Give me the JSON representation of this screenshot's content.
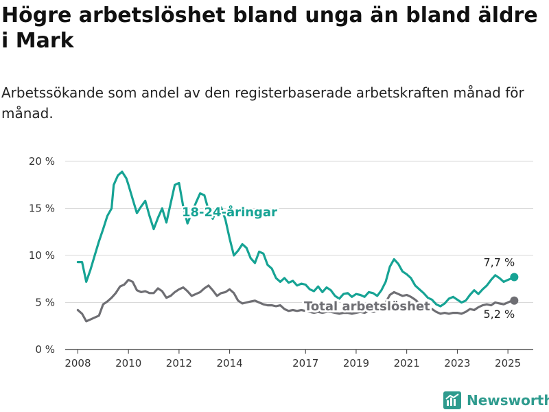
{
  "title": "Högre arbetslöshet bland unga än bland äldre i Mark",
  "subtitle": "Arbetssökande som andel av den registerbaserade arbetskraften månad för månad.",
  "brand": "Newsworthy",
  "colors": {
    "youth": "#16a394",
    "total": "#6e6e73",
    "grid": "#d9d9d9",
    "axis": "#333333",
    "brand": "#2f9b8e"
  },
  "chart_data": {
    "type": "line",
    "title": "Högre arbetslöshet bland unga än bland äldre i Mark",
    "subtitle": "Arbetssökande som andel av den registerbaserade arbetskraften månad för månad.",
    "xlabel": "",
    "ylabel": "",
    "x_ticks": [
      2008,
      2010,
      2012,
      2014,
      2017,
      2019,
      2021,
      2023,
      2025
    ],
    "xlim": [
      "2007-07",
      "2026-01"
    ],
    "y_ticks": [
      0,
      5,
      10,
      15,
      20
    ],
    "y_tick_labels": [
      "0 %",
      "5 %",
      "10 %",
      "15 %",
      "20 %"
    ],
    "ylim": [
      0,
      20
    ],
    "y_unit": "%",
    "grid": "horizontal",
    "legend": "none (direct labels)",
    "series": [
      {
        "name": "18-24-åringar",
        "key": "youth",
        "points": [
          [
            "2008-01",
            9.3
          ],
          [
            "2008-03",
            9.3
          ],
          [
            "2008-05",
            7.2
          ],
          [
            "2008-07",
            8.5
          ],
          [
            "2008-09",
            10.0
          ],
          [
            "2008-11",
            11.5
          ],
          [
            "2009-01",
            12.8
          ],
          [
            "2009-03",
            14.2
          ],
          [
            "2009-05",
            15.0
          ],
          [
            "2009-06",
            17.5
          ],
          [
            "2009-08",
            18.5
          ],
          [
            "2009-10",
            18.9
          ],
          [
            "2009-12",
            18.2
          ],
          [
            "2010-01",
            17.5
          ],
          [
            "2010-03",
            16.0
          ],
          [
            "2010-05",
            14.5
          ],
          [
            "2010-07",
            15.2
          ],
          [
            "2010-09",
            15.8
          ],
          [
            "2010-11",
            14.2
          ],
          [
            "2011-01",
            12.8
          ],
          [
            "2011-03",
            14.0
          ],
          [
            "2011-05",
            15.0
          ],
          [
            "2011-07",
            13.5
          ],
          [
            "2011-09",
            15.5
          ],
          [
            "2011-11",
            17.5
          ],
          [
            "2012-01",
            17.7
          ],
          [
            "2012-03",
            15.2
          ],
          [
            "2012-05",
            13.4
          ],
          [
            "2012-07",
            14.5
          ],
          [
            "2012-09",
            15.6
          ],
          [
            "2012-11",
            16.6
          ],
          [
            "2013-01",
            16.4
          ],
          [
            "2013-03",
            14.8
          ],
          [
            "2013-05",
            13.9
          ],
          [
            "2013-07",
            14.9
          ],
          [
            "2013-09",
            15.1
          ],
          [
            "2013-11",
            13.8
          ],
          [
            "2014-01",
            11.8
          ],
          [
            "2014-03",
            10.0
          ],
          [
            "2014-05",
            10.5
          ],
          [
            "2014-07",
            11.2
          ],
          [
            "2014-09",
            10.8
          ],
          [
            "2014-11",
            9.7
          ],
          [
            "2015-01",
            9.2
          ],
          [
            "2015-03",
            10.4
          ],
          [
            "2015-05",
            10.2
          ],
          [
            "2015-07",
            9.0
          ],
          [
            "2015-09",
            8.6
          ],
          [
            "2015-11",
            7.6
          ],
          [
            "2016-01",
            7.2
          ],
          [
            "2016-03",
            7.6
          ],
          [
            "2016-05",
            7.1
          ],
          [
            "2016-07",
            7.3
          ],
          [
            "2016-09",
            6.8
          ],
          [
            "2016-11",
            7.0
          ],
          [
            "2017-01",
            6.9
          ],
          [
            "2017-03",
            6.4
          ],
          [
            "2017-05",
            6.2
          ],
          [
            "2017-07",
            6.7
          ],
          [
            "2017-09",
            6.1
          ],
          [
            "2017-11",
            6.6
          ],
          [
            "2018-01",
            6.3
          ],
          [
            "2018-03",
            5.7
          ],
          [
            "2018-05",
            5.4
          ],
          [
            "2018-07",
            5.9
          ],
          [
            "2018-09",
            6.0
          ],
          [
            "2018-11",
            5.6
          ],
          [
            "2019-01",
            5.9
          ],
          [
            "2019-03",
            5.8
          ],
          [
            "2019-05",
            5.6
          ],
          [
            "2019-07",
            6.1
          ],
          [
            "2019-09",
            6.0
          ],
          [
            "2019-11",
            5.7
          ],
          [
            "2020-01",
            6.3
          ],
          [
            "2020-03",
            7.2
          ],
          [
            "2020-05",
            8.8
          ],
          [
            "2020-07",
            9.6
          ],
          [
            "2020-09",
            9.1
          ],
          [
            "2020-11",
            8.3
          ],
          [
            "2021-01",
            8.0
          ],
          [
            "2021-03",
            7.6
          ],
          [
            "2021-05",
            6.8
          ],
          [
            "2021-07",
            6.4
          ],
          [
            "2021-09",
            6.0
          ],
          [
            "2021-11",
            5.5
          ],
          [
            "2022-01",
            5.3
          ],
          [
            "2022-03",
            4.8
          ],
          [
            "2022-05",
            4.6
          ],
          [
            "2022-07",
            4.9
          ],
          [
            "2022-09",
            5.4
          ],
          [
            "2022-11",
            5.6
          ],
          [
            "2023-01",
            5.3
          ],
          [
            "2023-03",
            5.0
          ],
          [
            "2023-05",
            5.2
          ],
          [
            "2023-07",
            5.8
          ],
          [
            "2023-09",
            6.3
          ],
          [
            "2023-11",
            5.9
          ],
          [
            "2024-01",
            6.4
          ],
          [
            "2024-03",
            6.8
          ],
          [
            "2024-05",
            7.4
          ],
          [
            "2024-07",
            7.9
          ],
          [
            "2024-09",
            7.6
          ],
          [
            "2024-11",
            7.2
          ],
          [
            "2025-01",
            7.4
          ],
          [
            "2025-02",
            7.5
          ],
          [
            "2025-04",
            7.7
          ]
        ],
        "label": "18-24-åringar",
        "end_label": "7,7 %"
      },
      {
        "name": "Total arbetslöshet",
        "key": "total",
        "points": [
          [
            "2008-01",
            4.2
          ],
          [
            "2008-03",
            3.8
          ],
          [
            "2008-05",
            3.0
          ],
          [
            "2008-07",
            3.2
          ],
          [
            "2008-09",
            3.4
          ],
          [
            "2008-11",
            3.6
          ],
          [
            "2009-01",
            4.8
          ],
          [
            "2009-03",
            5.1
          ],
          [
            "2009-05",
            5.5
          ],
          [
            "2009-07",
            6.0
          ],
          [
            "2009-09",
            6.7
          ],
          [
            "2009-11",
            6.9
          ],
          [
            "2010-01",
            7.4
          ],
          [
            "2010-03",
            7.2
          ],
          [
            "2010-05",
            6.3
          ],
          [
            "2010-07",
            6.1
          ],
          [
            "2010-09",
            6.2
          ],
          [
            "2010-11",
            6.0
          ],
          [
            "2011-01",
            6.0
          ],
          [
            "2011-03",
            6.5
          ],
          [
            "2011-05",
            6.2
          ],
          [
            "2011-07",
            5.5
          ],
          [
            "2011-09",
            5.7
          ],
          [
            "2011-11",
            6.1
          ],
          [
            "2012-01",
            6.4
          ],
          [
            "2012-03",
            6.6
          ],
          [
            "2012-05",
            6.2
          ],
          [
            "2012-07",
            5.7
          ],
          [
            "2012-09",
            5.9
          ],
          [
            "2012-11",
            6.1
          ],
          [
            "2013-01",
            6.5
          ],
          [
            "2013-03",
            6.8
          ],
          [
            "2013-05",
            6.3
          ],
          [
            "2013-07",
            5.7
          ],
          [
            "2013-09",
            6.0
          ],
          [
            "2013-11",
            6.1
          ],
          [
            "2014-01",
            6.4
          ],
          [
            "2014-03",
            6.0
          ],
          [
            "2014-05",
            5.2
          ],
          [
            "2014-07",
            4.9
          ],
          [
            "2014-09",
            5.0
          ],
          [
            "2014-11",
            5.1
          ],
          [
            "2015-01",
            5.2
          ],
          [
            "2015-03",
            5.0
          ],
          [
            "2015-05",
            4.8
          ],
          [
            "2015-07",
            4.7
          ],
          [
            "2015-09",
            4.7
          ],
          [
            "2015-11",
            4.6
          ],
          [
            "2016-01",
            4.7
          ],
          [
            "2016-03",
            4.3
          ],
          [
            "2016-05",
            4.1
          ],
          [
            "2016-07",
            4.2
          ],
          [
            "2016-09",
            4.1
          ],
          [
            "2016-11",
            4.2
          ],
          [
            "2017-01",
            4.1
          ],
          [
            "2017-03",
            4.0
          ],
          [
            "2017-05",
            3.9
          ],
          [
            "2017-07",
            4.0
          ],
          [
            "2017-09",
            3.9
          ],
          [
            "2017-11",
            4.0
          ],
          [
            "2018-01",
            4.0
          ],
          [
            "2018-03",
            3.9
          ],
          [
            "2018-05",
            3.8
          ],
          [
            "2018-07",
            3.9
          ],
          [
            "2018-09",
            3.9
          ],
          [
            "2018-11",
            3.8
          ],
          [
            "2019-01",
            3.9
          ],
          [
            "2019-03",
            4.0
          ],
          [
            "2019-05",
            3.9
          ],
          [
            "2019-07",
            4.1
          ],
          [
            "2019-09",
            4.0
          ],
          [
            "2019-11",
            4.1
          ],
          [
            "2020-01",
            4.3
          ],
          [
            "2020-03",
            5.0
          ],
          [
            "2020-05",
            5.8
          ],
          [
            "2020-07",
            6.1
          ],
          [
            "2020-09",
            5.9
          ],
          [
            "2020-11",
            5.7
          ],
          [
            "2021-01",
            5.8
          ],
          [
            "2021-03",
            5.6
          ],
          [
            "2021-05",
            5.3
          ],
          [
            "2021-07",
            4.9
          ],
          [
            "2021-09",
            4.7
          ],
          [
            "2021-11",
            4.4
          ],
          [
            "2022-01",
            4.3
          ],
          [
            "2022-03",
            4.0
          ],
          [
            "2022-05",
            3.8
          ],
          [
            "2022-07",
            3.9
          ],
          [
            "2022-09",
            3.8
          ],
          [
            "2022-11",
            3.9
          ],
          [
            "2023-01",
            3.9
          ],
          [
            "2023-03",
            3.8
          ],
          [
            "2023-05",
            4.0
          ],
          [
            "2023-07",
            4.3
          ],
          [
            "2023-09",
            4.2
          ],
          [
            "2023-11",
            4.5
          ],
          [
            "2024-01",
            4.7
          ],
          [
            "2024-03",
            4.8
          ],
          [
            "2024-05",
            4.7
          ],
          [
            "2024-07",
            5.0
          ],
          [
            "2024-09",
            4.9
          ],
          [
            "2024-11",
            4.8
          ],
          [
            "2025-01",
            5.0
          ],
          [
            "2025-02",
            5.1
          ],
          [
            "2025-04",
            5.2
          ]
        ],
        "label": "Total arbetslöshet",
        "end_label": "5,2 %"
      }
    ]
  }
}
